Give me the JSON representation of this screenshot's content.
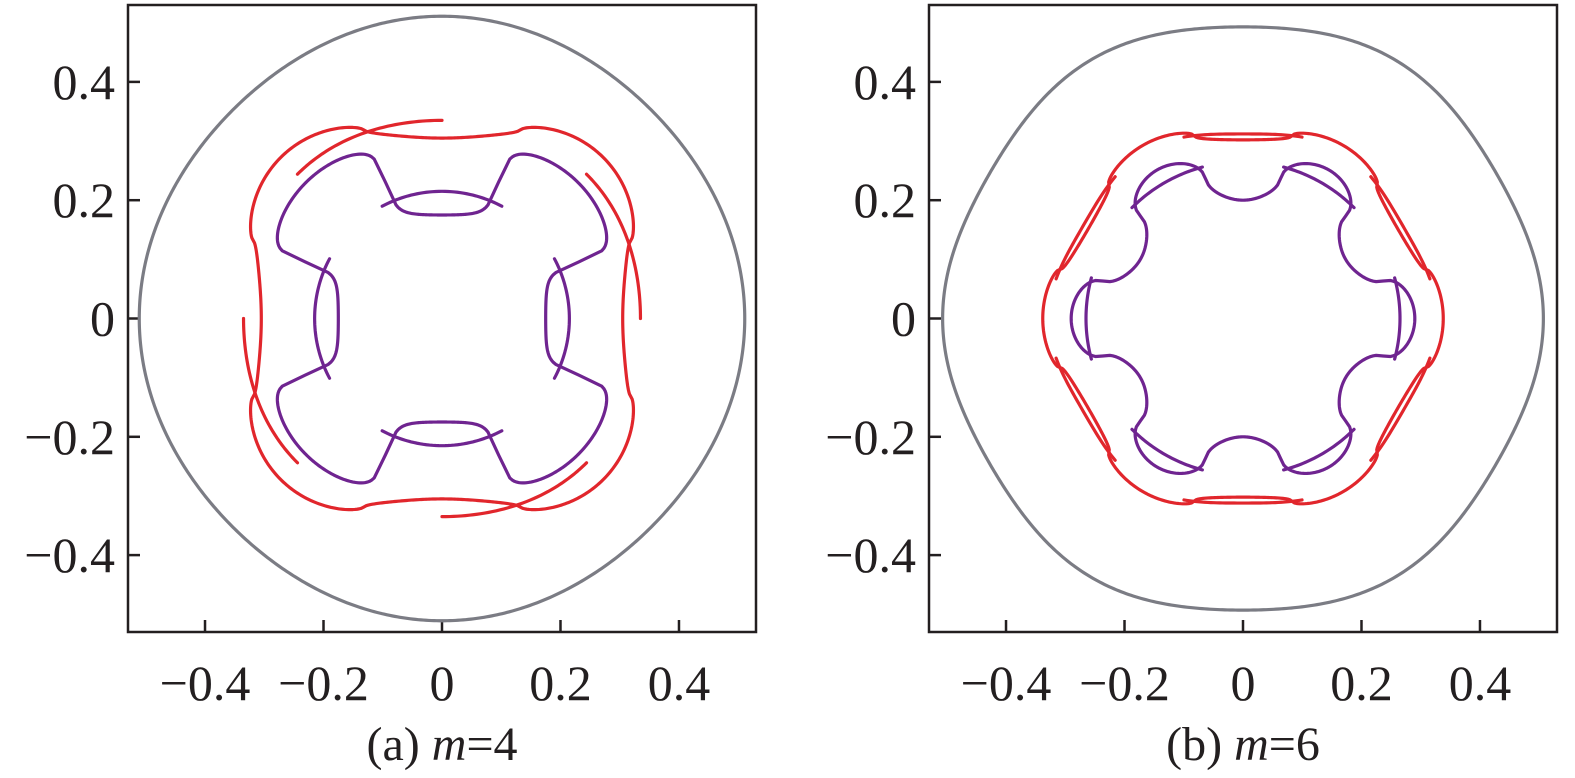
{
  "chart_data": [
    {
      "type": "line",
      "caption": {
        "prefix": "(a) ",
        "variable": "m",
        "suffix": "=4"
      },
      "m": 4,
      "xlim": [
        -0.53,
        0.53
      ],
      "ylim": [
        -0.53,
        0.53
      ],
      "x_ticks": [
        -0.4,
        -0.2,
        0,
        0.2,
        0.4
      ],
      "y_ticks": [
        -0.4,
        -0.2,
        0,
        0.2,
        0.4
      ],
      "x_tick_labels": [
        "−0.4",
        "−0.2",
        "0",
        "0.2",
        "0.4"
      ],
      "y_tick_labels": [
        "0.4",
        "0.2",
        "0",
        "−0.2",
        "−0.4"
      ],
      "colors": {
        "outer": "#7b7c84",
        "middle": "#e1262c",
        "inner": "#6f2490"
      },
      "series": [
        {
          "key": "outer",
          "kind": "outer",
          "r0": 0.505,
          "amp": 0.006
        },
        {
          "key": "middle",
          "kind": "closed",
          "r0": 0.345,
          "amp": -0.04,
          "sharp": 1.4
        },
        {
          "key": "middle",
          "kind": "arcs",
          "r": 0.34,
          "arcs": 4,
          "span_deg": 45,
          "offset_deg": 22.5,
          "dr": -0.005
        },
        {
          "key": "inner",
          "kind": "cross",
          "r0": 0.25,
          "amp": -0.075,
          "sharp": 6
        },
        {
          "key": "inner",
          "kind": "arcs",
          "r": 0.215,
          "arcs": 4,
          "span_deg": 56,
          "offset_deg": 0,
          "dr": 0
        }
      ]
    },
    {
      "type": "line",
      "caption": {
        "prefix": "(b) ",
        "variable": "m",
        "suffix": "=6"
      },
      "m": 6,
      "xlim": [
        -0.53,
        0.53
      ],
      "ylim": [
        -0.53,
        0.53
      ],
      "x_ticks": [
        -0.4,
        -0.2,
        0,
        0.2,
        0.4
      ],
      "y_ticks": [
        -0.4,
        -0.2,
        0,
        0.2,
        0.4
      ],
      "x_tick_labels": [
        "−0.4",
        "−0.2",
        "0",
        "0.2",
        "0.4"
      ],
      "y_tick_labels": [
        "0.4",
        "0.2",
        "0",
        "−0.2",
        "−0.4"
      ],
      "colors": {
        "outer": "#7b7c84",
        "middle": "#e1262c",
        "inner": "#6f2490"
      },
      "series": [
        {
          "key": "outer",
          "kind": "outer",
          "r0": 0.5,
          "amp": 0.007
        },
        {
          "key": "middle",
          "kind": "closed",
          "r0": 0.32,
          "amp": 0.018,
          "sharp": 1.8
        },
        {
          "key": "middle",
          "kind": "arcs",
          "r": 0.32,
          "arcs": 6,
          "span_deg": 36,
          "offset_deg": 30,
          "dr": 0.008
        },
        {
          "key": "inner",
          "kind": "wavy",
          "r0": 0.245,
          "amp": 0.045,
          "sharp": 2.2
        },
        {
          "key": "inner",
          "kind": "arcs",
          "r": 0.265,
          "arcs": 6,
          "span_deg": 30,
          "offset_deg": 0,
          "dr": 0
        }
      ]
    }
  ]
}
